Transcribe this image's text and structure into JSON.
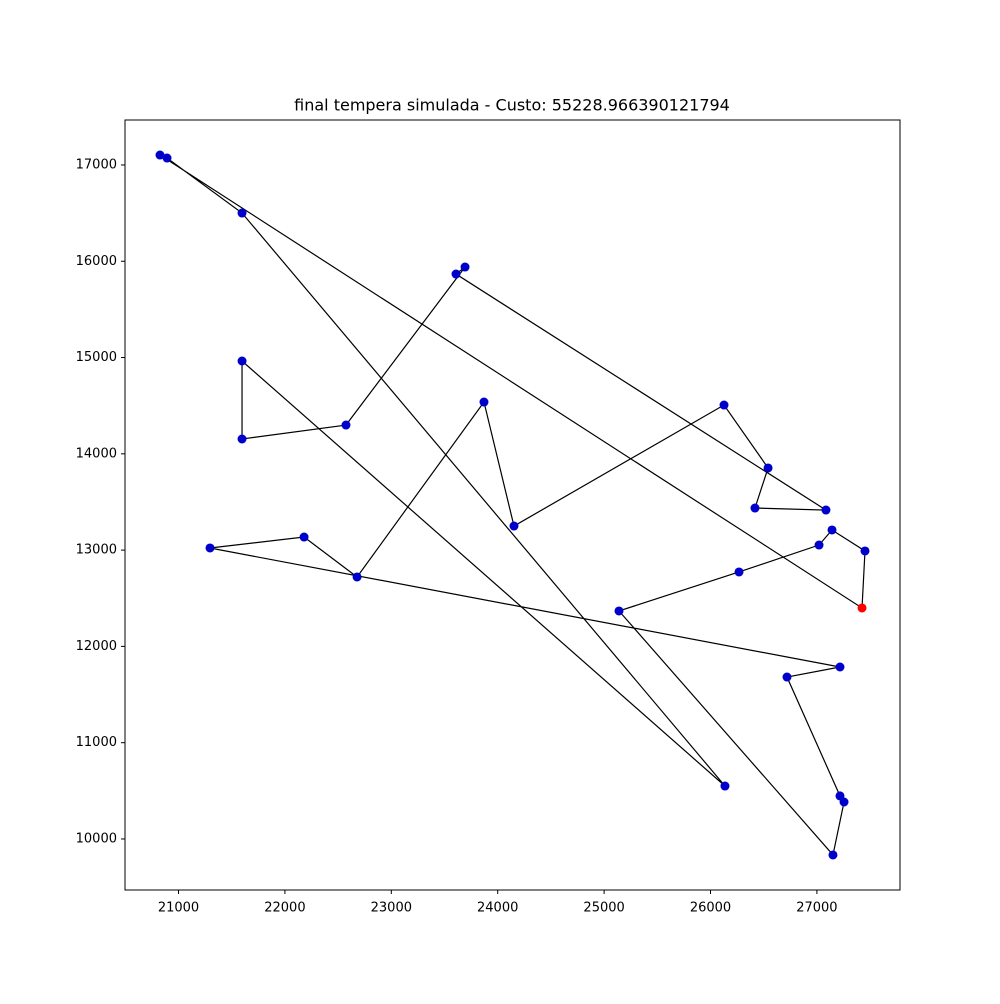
{
  "chart_data": {
    "type": "line",
    "title": "final tempera simulada - Custo: 55228.966390121794",
    "x": [
      27424,
      27452,
      27142,
      27020,
      26268,
      25140,
      27151,
      27255,
      27217,
      26719,
      27217,
      21296,
      22180,
      22678,
      23871,
      24153,
      26127,
      26541,
      26418,
      27085,
      23608,
      23693,
      22574,
      21597,
      21597,
      26136,
      21597,
      20892,
      20826
    ],
    "series": [
      {
        "color": "#0000cc",
        "values": [
          12399,
          12991,
          13209,
          13053,
          12773,
          12368,
          9834,
          10384,
          10447,
          11682,
          11786,
          13022,
          13136,
          12721,
          14538,
          13250,
          14507,
          13853,
          13437,
          13416,
          15867,
          15940,
          14299,
          14154,
          14964,
          10550,
          16501,
          17072,
          17103
        ]
      }
    ],
    "line_color": "#000000",
    "start_color": "#ff0000",
    "closed": true,
    "xlim": [
      20497,
      27781
    ],
    "ylim": [
      9470,
      17467
    ],
    "xticks": [
      21000,
      22000,
      23000,
      24000,
      25000,
      26000,
      27000
    ],
    "yticks": [
      10000,
      11000,
      12000,
      13000,
      14000,
      15000,
      16000,
      17000
    ]
  }
}
